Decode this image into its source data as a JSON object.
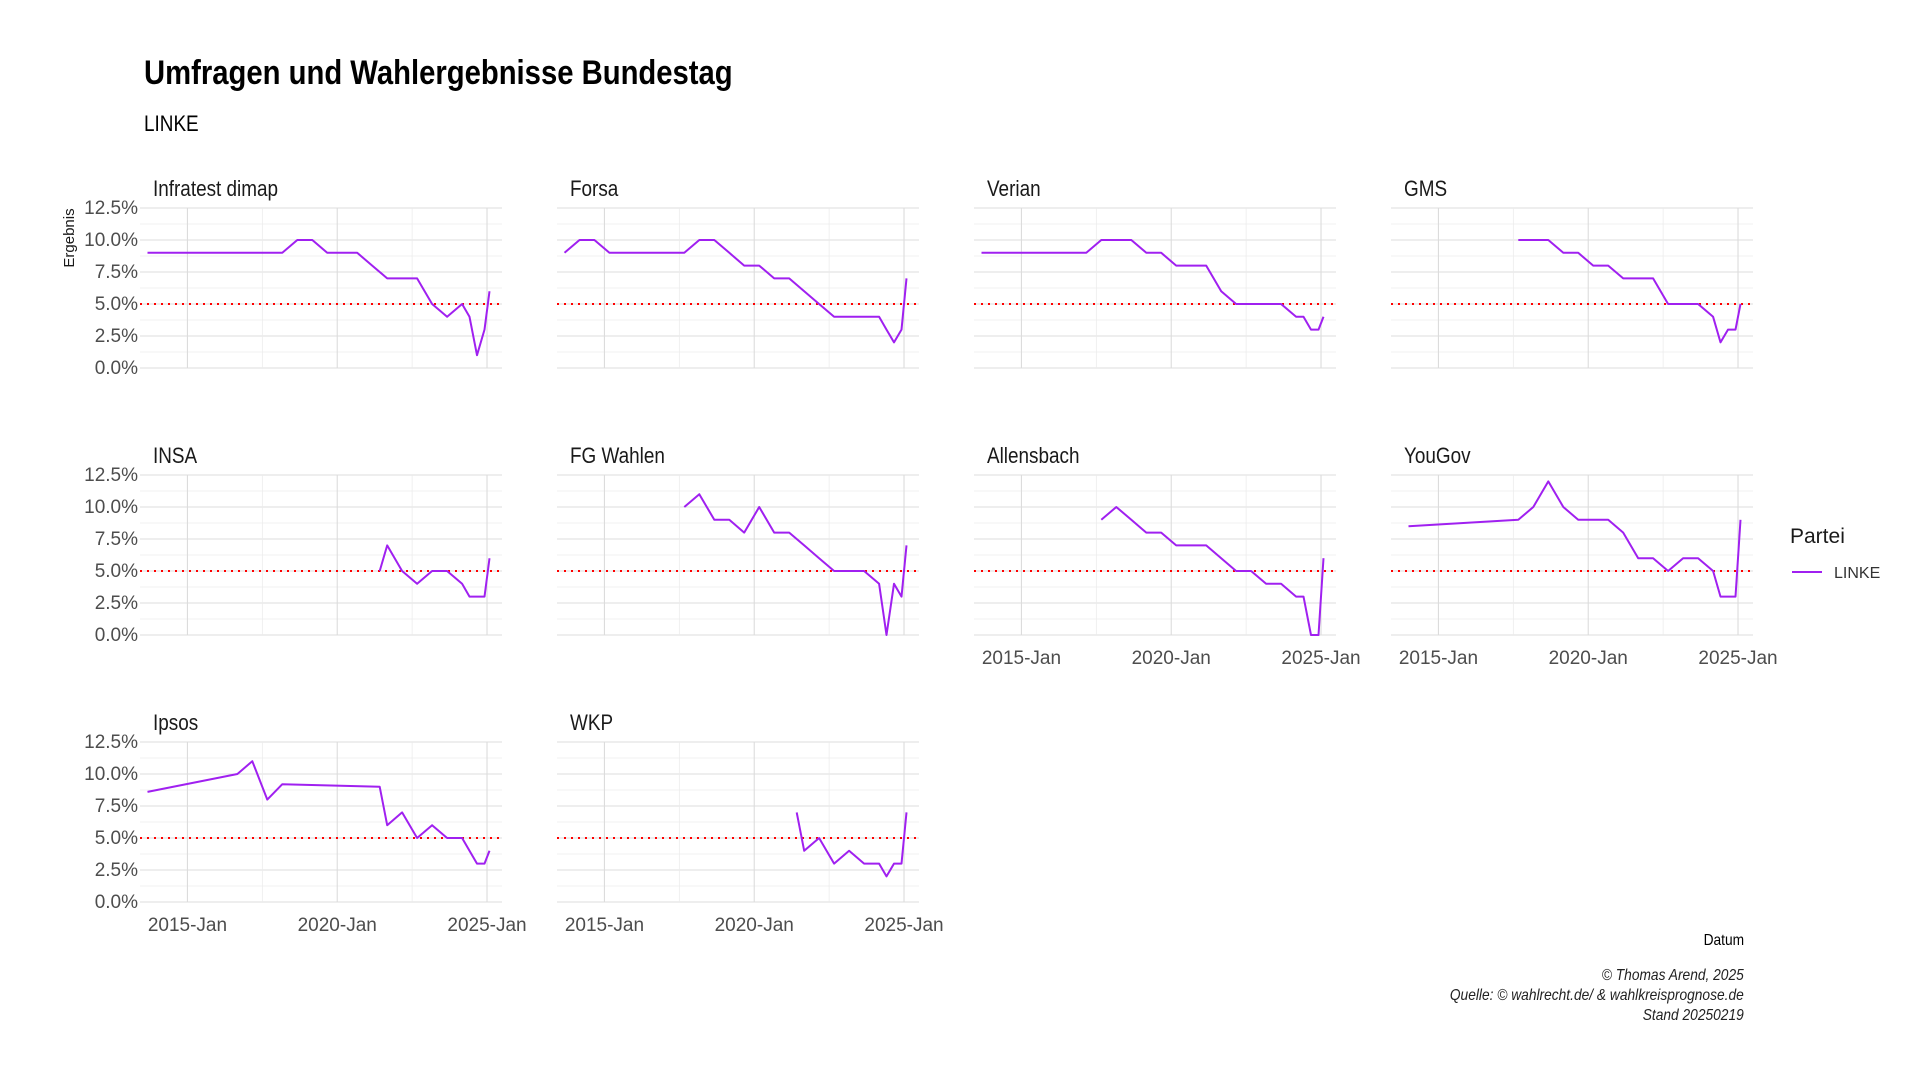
{
  "title": "Umfragen und Wahlergebnisse Bundestag",
  "subtitle": "LINKE",
  "caption": [
    "© Thomas Arend, 2025",
    "Quelle: © wahlrecht.de/ & wahlkreisprognose.de",
    "Stand 20250219"
  ],
  "chart_data": {
    "type": "line",
    "title": "Umfragen und Wahlergebnisse Bundestag",
    "subtitle": "LINKE",
    "xlabel": "Datum",
    "ylabel": "Ergebnis",
    "x_ticks": [
      "2015-Jan",
      "2020-Jan",
      "2025-Jan"
    ],
    "y_ticks": [
      "0.0%",
      "2.5%",
      "5.0%",
      "7.5%",
      "10.0%",
      "12.5%"
    ],
    "xlim": [
      "2013-06",
      "2025-07"
    ],
    "ylim": [
      0,
      12.5
    ],
    "reference_line": {
      "value": 5.0,
      "style": "dotted",
      "color": "#ff0000"
    },
    "legend": {
      "title": "Partei",
      "entries": [
        "LINKE"
      ],
      "placement": "right"
    },
    "series_color": "#a020f0",
    "grid": true,
    "panels": [
      {
        "name": "Infratest dimap",
        "x": [
          "2013-09",
          "2014-03",
          "2014-09",
          "2015-03",
          "2015-09",
          "2016-03",
          "2016-09",
          "2017-03",
          "2017-09",
          "2018-03",
          "2018-09",
          "2019-03",
          "2019-09",
          "2020-03",
          "2020-09",
          "2021-03",
          "2021-09",
          "2022-03",
          "2022-09",
          "2023-03",
          "2023-09",
          "2024-03",
          "2024-06",
          "2024-09",
          "2024-12",
          "2025-02"
        ],
        "y": [
          9,
          9,
          9,
          9,
          9,
          9,
          9,
          9,
          9,
          9,
          10,
          10,
          9,
          9,
          9,
          8,
          7,
          7,
          7,
          5,
          4,
          5,
          4,
          1,
          3,
          6
        ]
      },
      {
        "name": "Forsa",
        "x": [
          "2013-09",
          "2014-03",
          "2014-09",
          "2015-03",
          "2015-09",
          "2016-03",
          "2016-09",
          "2017-03",
          "2017-09",
          "2018-03",
          "2018-09",
          "2019-03",
          "2019-09",
          "2020-03",
          "2020-09",
          "2021-03",
          "2021-09",
          "2022-03",
          "2022-09",
          "2023-03",
          "2023-09",
          "2024-03",
          "2024-06",
          "2024-09",
          "2024-12",
          "2025-02"
        ],
        "y": [
          9,
          10,
          10,
          9,
          9,
          9,
          9,
          9,
          9,
          10,
          10,
          9,
          8,
          8,
          7,
          7,
          6,
          5,
          4,
          4,
          4,
          4,
          3,
          2,
          3,
          7
        ]
      },
      {
        "name": "Verian",
        "x": [
          "2013-09",
          "2014-03",
          "2014-09",
          "2015-03",
          "2015-09",
          "2016-03",
          "2016-09",
          "2017-03",
          "2017-09",
          "2018-03",
          "2018-09",
          "2019-03",
          "2019-09",
          "2020-03",
          "2020-09",
          "2021-03",
          "2021-09",
          "2022-03",
          "2022-09",
          "2023-03",
          "2023-09",
          "2024-03",
          "2024-06",
          "2024-09",
          "2024-12",
          "2025-02"
        ],
        "y": [
          9,
          9,
          9,
          9,
          9,
          9,
          9,
          9,
          10,
          10,
          10,
          9,
          9,
          8,
          8,
          8,
          6,
          5,
          5,
          5,
          5,
          4,
          4,
          3,
          3,
          4
        ]
      },
      {
        "name": "GMS",
        "x": [
          "2017-09",
          "2018-03",
          "2018-09",
          "2019-03",
          "2019-09",
          "2020-03",
          "2020-09",
          "2021-03",
          "2021-09",
          "2022-03",
          "2022-09",
          "2023-03",
          "2023-09",
          "2024-03",
          "2024-06",
          "2024-09",
          "2024-12",
          "2025-02"
        ],
        "y": [
          10,
          10,
          10,
          9,
          9,
          8,
          8,
          7,
          7,
          7,
          5,
          5,
          5,
          4,
          2,
          3,
          3,
          5
        ]
      },
      {
        "name": "INSA",
        "x": [
          "2021-06",
          "2021-09",
          "2022-03",
          "2022-09",
          "2023-03",
          "2023-09",
          "2024-03",
          "2024-06",
          "2024-09",
          "2024-12",
          "2025-02"
        ],
        "y": [
          5,
          7,
          5,
          4,
          5,
          5,
          4,
          3,
          3,
          3,
          6
        ]
      },
      {
        "name": "FG Wahlen",
        "x": [
          "2017-09",
          "2018-03",
          "2018-09",
          "2019-03",
          "2019-09",
          "2020-03",
          "2020-09",
          "2021-03",
          "2021-09",
          "2022-03",
          "2022-09",
          "2023-03",
          "2023-09",
          "2024-03",
          "2024-06",
          "2024-09",
          "2024-12",
          "2025-02"
        ],
        "y": [
          10,
          11,
          9,
          9,
          8,
          10,
          8,
          8,
          7,
          6,
          5,
          5,
          5,
          4,
          0,
          4,
          3,
          7
        ]
      },
      {
        "name": "Allensbach",
        "x": [
          "2017-09",
          "2018-03",
          "2018-09",
          "2019-03",
          "2019-09",
          "2020-03",
          "2020-09",
          "2021-03",
          "2021-09",
          "2022-03",
          "2022-09",
          "2023-03",
          "2023-09",
          "2024-03",
          "2024-06",
          "2024-09",
          "2024-12",
          "2025-02"
        ],
        "y": [
          9,
          10,
          9,
          8,
          8,
          7,
          7,
          7,
          6,
          5,
          5,
          4,
          4,
          3,
          3,
          0,
          0,
          6
        ]
      },
      {
        "name": "YouGov",
        "x": [
          "2014-01",
          "2017-09",
          "2018-03",
          "2018-09",
          "2019-03",
          "2019-09",
          "2020-03",
          "2020-09",
          "2021-03",
          "2021-09",
          "2022-03",
          "2022-09",
          "2023-03",
          "2023-09",
          "2024-03",
          "2024-06",
          "2024-09",
          "2024-12",
          "2025-02"
        ],
        "y": [
          8.5,
          9,
          10,
          12,
          10,
          9,
          9,
          9,
          8,
          6,
          6,
          5,
          6,
          6,
          5,
          3,
          3,
          3,
          9
        ]
      },
      {
        "name": "Ipsos",
        "x": [
          "2013-09",
          "2016-09",
          "2017-03",
          "2017-09",
          "2018-03",
          "2021-06",
          "2021-09",
          "2022-03",
          "2022-09",
          "2023-03",
          "2023-09",
          "2024-03",
          "2024-06",
          "2024-09",
          "2024-12",
          "2025-02"
        ],
        "y": [
          8.6,
          10,
          11,
          8,
          9.2,
          9,
          6,
          7,
          5,
          6,
          5,
          5,
          4,
          3,
          3,
          4
        ]
      },
      {
        "name": "WKP",
        "x": [
          "2021-06",
          "2021-09",
          "2022-03",
          "2022-09",
          "2023-03",
          "2023-09",
          "2024-03",
          "2024-06",
          "2024-09",
          "2024-12",
          "2025-02"
        ],
        "y": [
          7,
          4,
          5,
          3,
          4,
          3,
          3,
          2,
          3,
          3,
          7
        ]
      }
    ]
  }
}
